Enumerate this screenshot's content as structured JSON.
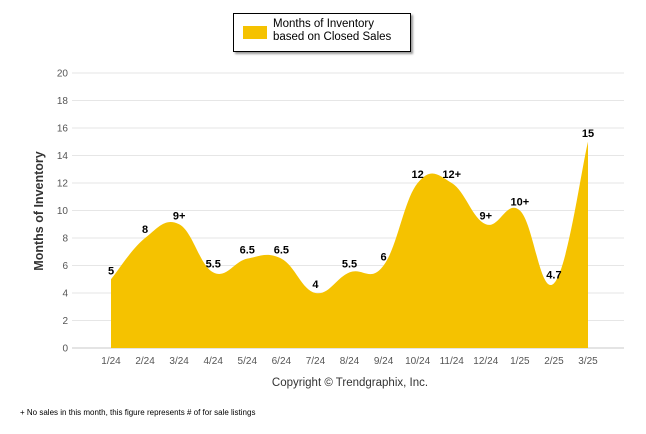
{
  "chart_data": {
    "type": "area",
    "categories": [
      "1/24",
      "2/24",
      "3/24",
      "4/24",
      "5/24",
      "6/24",
      "7/24",
      "8/24",
      "9/24",
      "10/24",
      "11/24",
      "12/24",
      "1/25",
      "2/25",
      "3/25"
    ],
    "series": [
      {
        "name": "Months of Inventory based on Closed Sales",
        "values": [
          5,
          8,
          9,
          5.5,
          6.5,
          6.5,
          4,
          5.5,
          6,
          12,
          12,
          9,
          10,
          4.7,
          15
        ],
        "labels": [
          "5",
          "8",
          "9+",
          "5.5",
          "6.5",
          "6.5",
          "4",
          "5.5",
          "6",
          "12",
          "12+",
          "9+",
          "10+",
          "4.7",
          "15"
        ],
        "color": "#F5C200"
      }
    ],
    "ylabel": "Months of Inventory",
    "xlabel": "",
    "ylim": [
      0,
      20
    ],
    "yticks": [
      0,
      2,
      4,
      6,
      8,
      10,
      12,
      14,
      16,
      18,
      20
    ],
    "grid": true,
    "legend_position": "top-center"
  },
  "legend": {
    "label": "Months of Inventory based on Closed Sales"
  },
  "copyright": "Copyright © Trendgraphix, Inc.",
  "footnote": "+ No sales in this month, this figure represents # of for sale listings",
  "colors": {
    "area": "#F5C200",
    "grid": "#e6e6e6"
  }
}
